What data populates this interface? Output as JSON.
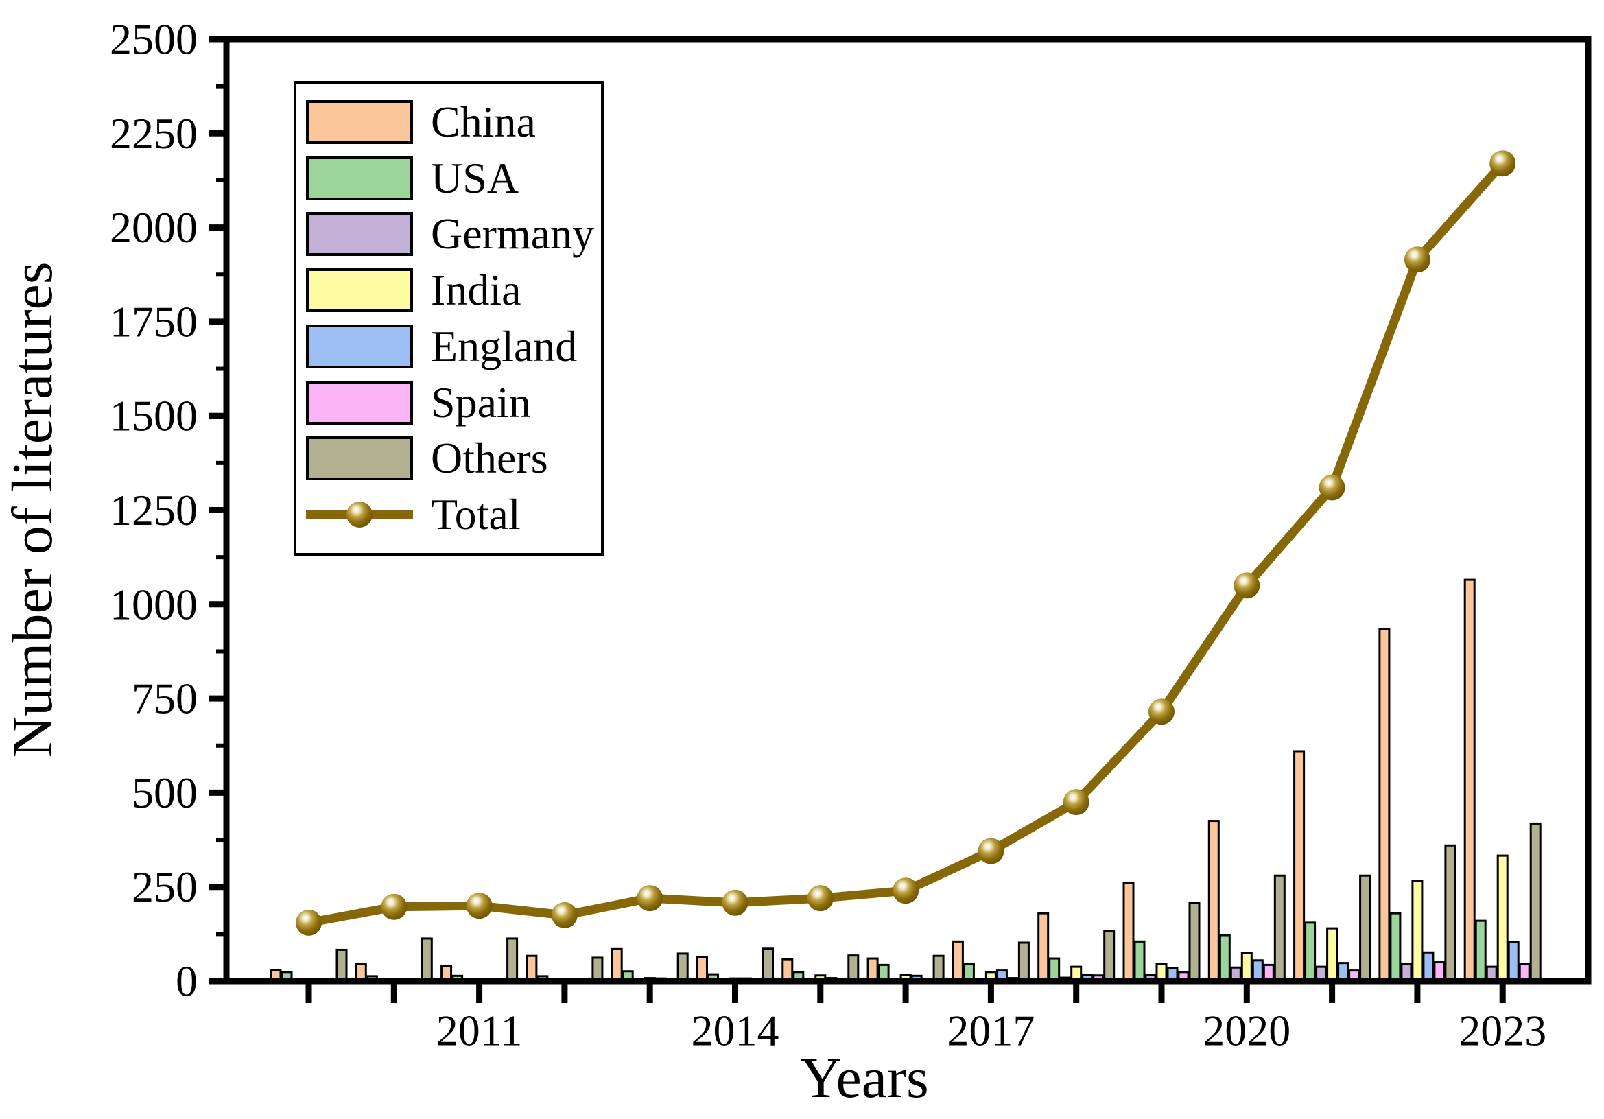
{
  "figure": {
    "background": "#ffffff",
    "axis_color": "#000000"
  },
  "chart_data": {
    "type": "bar",
    "title": "",
    "xlabel": "Years",
    "ylabel": "Number of literatures",
    "categories": [
      2009,
      2010,
      2011,
      2012,
      2013,
      2014,
      2015,
      2016,
      2017,
      2018,
      2019,
      2020,
      2021,
      2022,
      2023
    ],
    "series": [
      {
        "name": "China",
        "type": "bar",
        "color": "#FBC79A",
        "values": [
          30,
          45,
          40,
          67,
          85,
          63,
          58,
          60,
          105,
          180,
          260,
          425,
          610,
          935,
          1065
        ]
      },
      {
        "name": "USA",
        "type": "bar",
        "color": "#9CD59C",
        "values": [
          24,
          13,
          14,
          13,
          26,
          18,
          24,
          43,
          45,
          60,
          105,
          122,
          155,
          180,
          160
        ]
      },
      {
        "name": "Germany",
        "type": "bar",
        "color": "#C2B0D6",
        "values": [
          3,
          4,
          4,
          5,
          6,
          4,
          4,
          5,
          6,
          9,
          16,
          36,
          38,
          46,
          38
        ]
      },
      {
        "name": "India",
        "type": "bar",
        "color": "#FDFCA2",
        "values": [
          2,
          4,
          4,
          6,
          8,
          7,
          15,
          16,
          24,
          38,
          45,
          75,
          140,
          265,
          333
        ]
      },
      {
        "name": "England",
        "type": "bar",
        "color": "#9DBEF2",
        "values": [
          3,
          5,
          5,
          6,
          7,
          7,
          8,
          14,
          28,
          16,
          34,
          55,
          48,
          76,
          103
        ]
      },
      {
        "name": "Spain",
        "type": "bar",
        "color": "#FBB5F6",
        "values": [
          2,
          3,
          3,
          4,
          4,
          4,
          5,
          6,
          8,
          15,
          24,
          43,
          28,
          50,
          45
        ]
      },
      {
        "name": "Others",
        "type": "bar",
        "color": "#B1B090",
        "values": [
          83,
          113,
          113,
          62,
          73,
          86,
          68,
          67,
          102,
          132,
          208,
          280,
          280,
          360,
          418
        ]
      },
      {
        "name": "Total",
        "type": "line",
        "color": "#866808",
        "values": [
          155,
          197,
          200,
          175,
          220,
          208,
          220,
          240,
          345,
          475,
          715,
          1050,
          1310,
          1915,
          2170
        ]
      }
    ],
    "ylim": [
      0,
      2500
    ],
    "y_major_step": 250,
    "y_minor_step": 125,
    "x_labeled_ticks": [
      2011,
      2014,
      2017,
      2020,
      2023
    ],
    "legend_position": "upper-left",
    "grid": false,
    "marker_style": "sphere"
  }
}
